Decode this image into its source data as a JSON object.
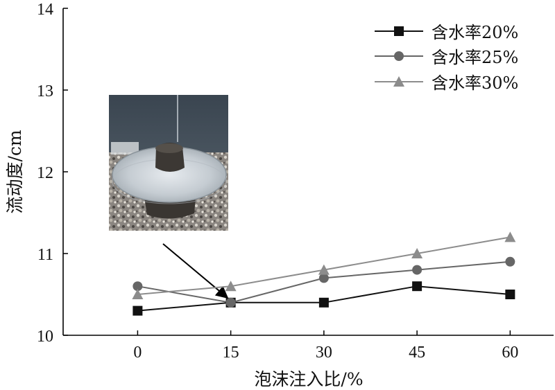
{
  "chart_data": {
    "type": "line",
    "xlabel": "泡沫注入比/%",
    "ylabel": "流动度/cm",
    "x": [
      0,
      15,
      30,
      45,
      60
    ],
    "x_tick_labels": [
      "0",
      "15",
      "30",
      "45",
      "60"
    ],
    "xlim": [
      -12,
      67
    ],
    "ylim": [
      10,
      14
    ],
    "y_ticks": [
      10,
      11,
      12,
      13,
      14
    ],
    "grid": false,
    "legend_position": "top-right",
    "series": [
      {
        "name": "含水率20%",
        "marker": "square",
        "color": "#111111",
        "values": [
          10.3,
          10.4,
          10.4,
          10.6,
          10.5
        ]
      },
      {
        "name": "含水率25%",
        "marker": "circle",
        "color": "#666666",
        "values": [
          10.6,
          10.4,
          10.7,
          10.8,
          10.9
        ]
      },
      {
        "name": "含水率30%",
        "marker": "triangle",
        "color": "#8c8c8c",
        "values": [
          10.5,
          10.6,
          10.8,
          11.0,
          11.2
        ]
      }
    ],
    "annotation": {
      "inset": "photo-of-flow-test-specimen",
      "arrow_points_to": {
        "x": 15,
        "y": 10.4
      }
    }
  }
}
